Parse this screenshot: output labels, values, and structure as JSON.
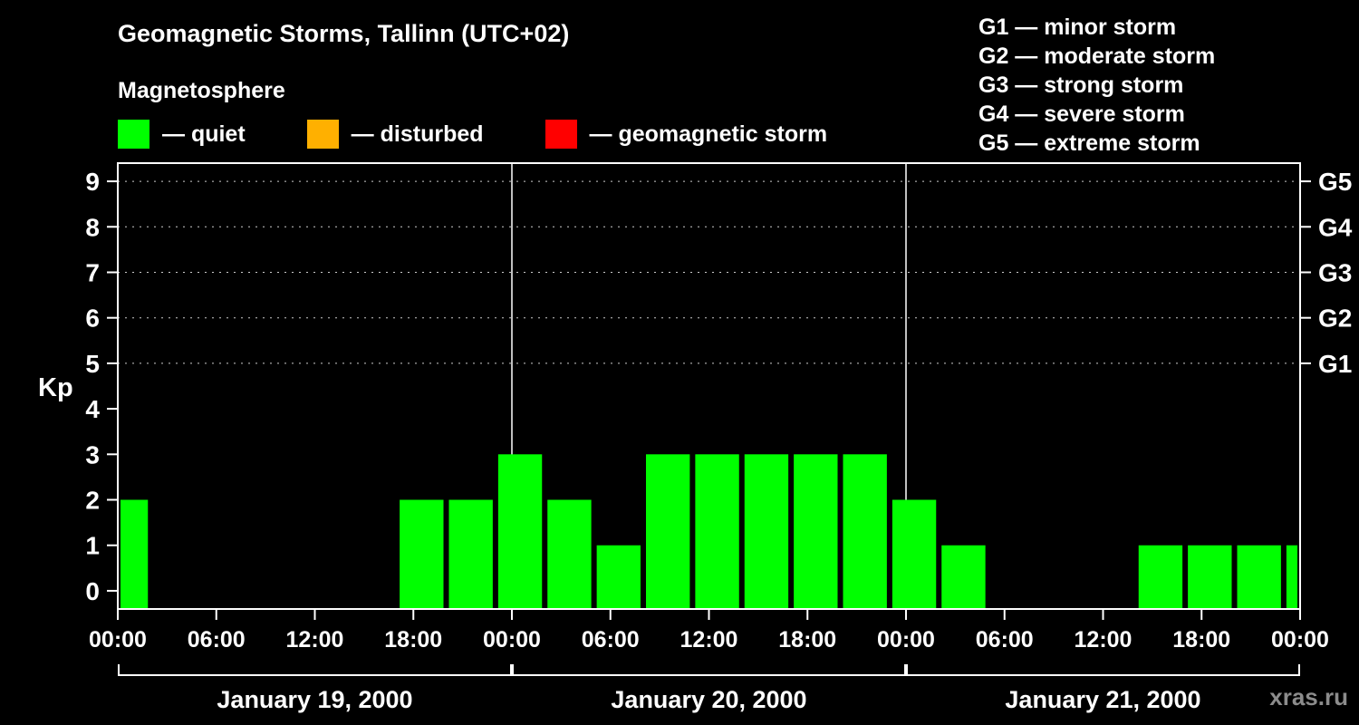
{
  "header": {
    "title": "Geomagnetic Storms, Tallinn (UTC+02)",
    "subtitle": "Magnetosphere"
  },
  "legend": {
    "items": [
      {
        "label": "— quiet",
        "color": "#00ff00"
      },
      {
        "label": "— disturbed",
        "color": "#ffb000"
      },
      {
        "label": "— geomagnetic storm",
        "color": "#ff0000"
      }
    ]
  },
  "storm_scale": {
    "items": [
      {
        "label": "G1 — minor storm"
      },
      {
        "label": "G2 — moderate storm"
      },
      {
        "label": "G3 — strong storm"
      },
      {
        "label": "G4 — severe storm"
      },
      {
        "label": "G5 — extreme storm"
      }
    ]
  },
  "watermark": "xras.ru",
  "chart_data": {
    "type": "bar",
    "title": "Geomagnetic Storms, Tallinn (UTC+02)",
    "ylabel": "Kp",
    "ylim": [
      -0.4,
      9.4
    ],
    "grid": "dotted horizontal lines at G-storm levels only",
    "legend_position": "top",
    "bar_color": "#00ff00",
    "axis_color": "#ffffff",
    "background_color": "#000000",
    "x_hours_total": 72,
    "y_ticks": [
      0,
      1,
      2,
      3,
      4,
      5,
      6,
      7,
      8,
      9
    ],
    "gridline_values": [
      5,
      6,
      7,
      8,
      9
    ],
    "right_axis_labels": [
      {
        "label": "G5",
        "value": 9
      },
      {
        "label": "G4",
        "value": 8
      },
      {
        "label": "G3",
        "value": 7
      },
      {
        "label": "G2",
        "value": 6
      },
      {
        "label": "G1",
        "value": 5
      }
    ],
    "x_ticks": [
      {
        "hour": 0,
        "label": "00:00"
      },
      {
        "hour": 6,
        "label": "06:00"
      },
      {
        "hour": 12,
        "label": "12:00"
      },
      {
        "hour": 18,
        "label": "18:00"
      },
      {
        "hour": 24,
        "label": "00:00"
      },
      {
        "hour": 30,
        "label": "06:00"
      },
      {
        "hour": 36,
        "label": "12:00"
      },
      {
        "hour": 42,
        "label": "18:00"
      },
      {
        "hour": 48,
        "label": "00:00"
      },
      {
        "hour": 54,
        "label": "06:00"
      },
      {
        "hour": 60,
        "label": "12:00"
      },
      {
        "hour": 66,
        "label": "18:00"
      },
      {
        "hour": 72,
        "label": "00:00"
      }
    ],
    "day_boundaries_hours": [
      24,
      48
    ],
    "days": [
      {
        "label": "January 19, 2000",
        "start_hour": 0,
        "end_hour": 24
      },
      {
        "label": "January 20, 2000",
        "start_hour": 24,
        "end_hour": 48
      },
      {
        "label": "January 21, 2000",
        "start_hour": 48,
        "end_hour": 72
      }
    ],
    "bars": [
      {
        "start_hour": 0,
        "end_hour": 2,
        "kp": 2
      },
      {
        "start_hour": 17,
        "end_hour": 20,
        "kp": 2
      },
      {
        "start_hour": 20,
        "end_hour": 23,
        "kp": 2
      },
      {
        "start_hour": 23,
        "end_hour": 26,
        "kp": 3
      },
      {
        "start_hour": 26,
        "end_hour": 29,
        "kp": 2
      },
      {
        "start_hour": 29,
        "end_hour": 32,
        "kp": 1
      },
      {
        "start_hour": 32,
        "end_hour": 35,
        "kp": 3
      },
      {
        "start_hour": 35,
        "end_hour": 38,
        "kp": 3
      },
      {
        "start_hour": 38,
        "end_hour": 41,
        "kp": 3
      },
      {
        "start_hour": 41,
        "end_hour": 44,
        "kp": 3
      },
      {
        "start_hour": 44,
        "end_hour": 47,
        "kp": 3
      },
      {
        "start_hour": 47,
        "end_hour": 50,
        "kp": 2
      },
      {
        "start_hour": 50,
        "end_hour": 53,
        "kp": 1
      },
      {
        "start_hour": 62,
        "end_hour": 65,
        "kp": 1
      },
      {
        "start_hour": 65,
        "end_hour": 68,
        "kp": 1
      },
      {
        "start_hour": 68,
        "end_hour": 71,
        "kp": 1
      },
      {
        "start_hour": 71,
        "end_hour": 72,
        "kp": 1
      }
    ]
  }
}
